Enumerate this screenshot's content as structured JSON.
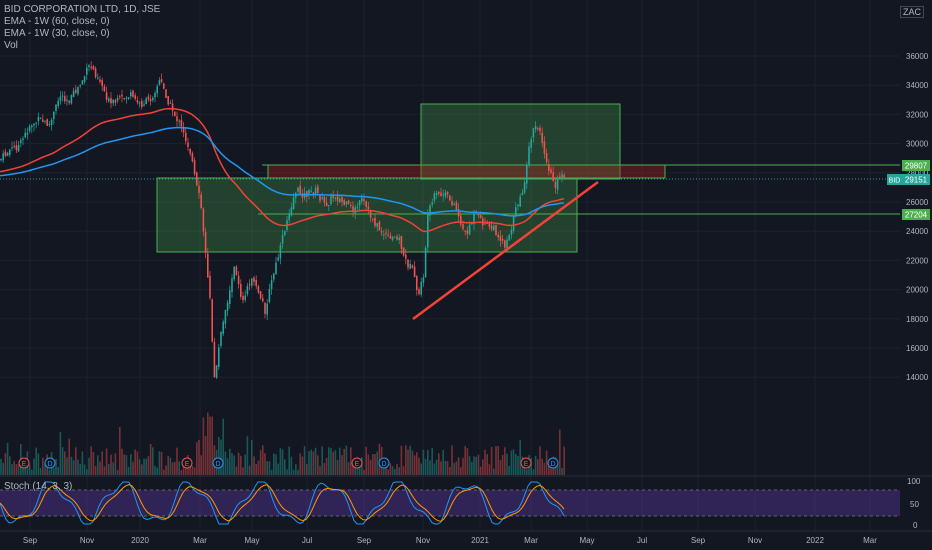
{
  "legend": {
    "symbol": "BID CORPORATION LTD, 1D, JSE",
    "ema1": "EMA - 1W (60, close, 0)",
    "ema2": "EMA - 1W (30, close, 0)",
    "vol": "Vol"
  },
  "currency": "ZAC",
  "price_axis": [
    "36000",
    "34000",
    "32000",
    "30000",
    "28000",
    "26000",
    "24000",
    "22000",
    "20000",
    "18000",
    "16000",
    "14000"
  ],
  "price_tags": [
    {
      "label": "29807",
      "color": "#4caf50"
    },
    {
      "label": "BID",
      "color": "#26a69a"
    },
    {
      "label": "29151",
      "color": "#26a69a"
    },
    {
      "label": "27204",
      "color": "#4caf50"
    }
  ],
  "stoch": {
    "label": "Stoch (14, 3, 3)",
    "axis": [
      "100",
      "50",
      "0"
    ]
  },
  "time_axis": [
    "Sep",
    "Nov",
    "2020",
    "Mar",
    "May",
    "Jul",
    "Sep",
    "Nov",
    "2021",
    "Mar",
    "May",
    "Jul",
    "Sep",
    "Nov",
    "2022",
    "Mar"
  ],
  "event_markers": [
    "E",
    "D",
    "E",
    "D",
    "E",
    "D",
    "E",
    "D"
  ],
  "colors": {
    "bg": "#131722",
    "up": "#26a69a",
    "down": "#ef5350",
    "ema_red": "#f44336",
    "ema_blue": "#2196f3",
    "box": "#4caf50",
    "stoch_band": "#673ab7"
  }
}
